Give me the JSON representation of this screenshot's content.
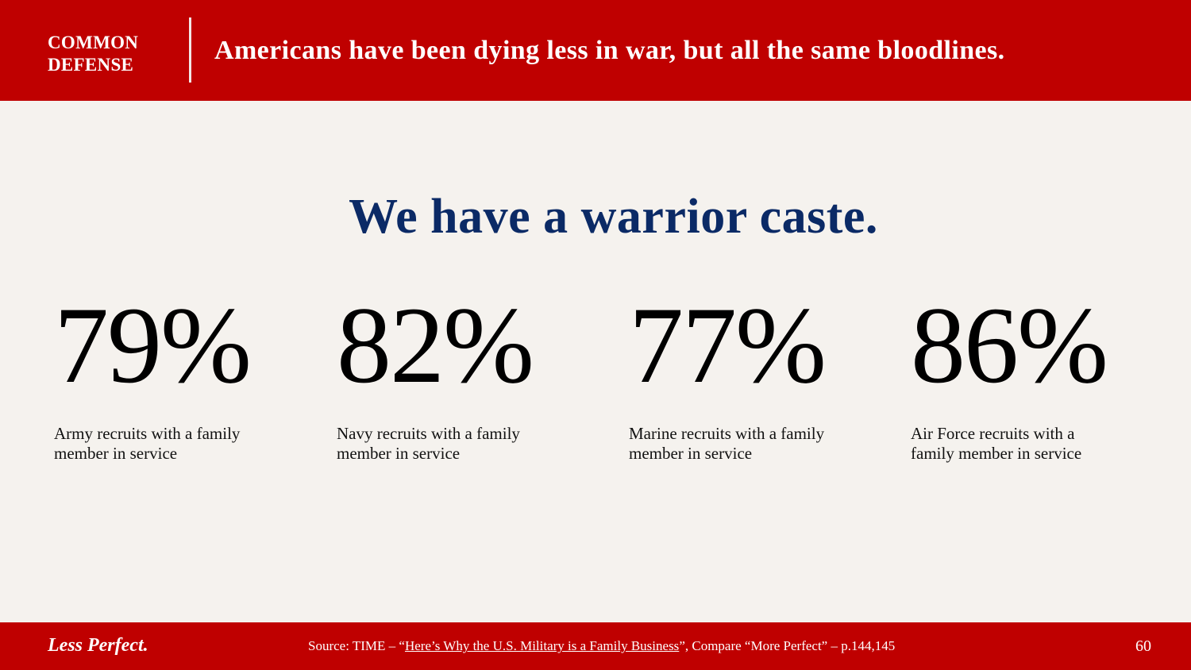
{
  "header": {
    "section_line1": "COMMON",
    "section_line2": "DEFENSE",
    "headline": "Americans have been dying less in war, but all the same bloodlines."
  },
  "main": {
    "title": "We have a warrior caste.",
    "stats": [
      {
        "value": "79%",
        "caption": "Army recruits with a family member in service"
      },
      {
        "value": "82%",
        "caption": "Navy recruits with a family member in service"
      },
      {
        "value": "77%",
        "caption": "Marine recruits with a family member in service"
      },
      {
        "value": "86%",
        "caption": "Air Force recruits with a family member in service"
      }
    ]
  },
  "footer": {
    "brand": "Less Perfect.",
    "source_prefix": "Source: TIME – “",
    "source_link": "Here’s Why the U.S. Military is a Family Business",
    "source_suffix": "”, Compare “More Perfect” – p.144,145",
    "page_number": "60"
  },
  "colors": {
    "accent_red": "#bf0000",
    "title_navy": "#0b2a66",
    "background": "#f5f2ee"
  }
}
